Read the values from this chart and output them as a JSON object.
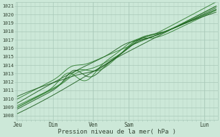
{
  "title": "",
  "xlabel": "Pression niveau de la mer( hPa )",
  "ylabel": "",
  "ylim": [
    1007.5,
    1021.5
  ],
  "yticks": [
    1008,
    1009,
    1010,
    1011,
    1012,
    1013,
    1014,
    1015,
    1016,
    1017,
    1018,
    1019,
    1020,
    1021
  ],
  "xtick_labels": [
    "Jeu",
    "Dim",
    "Ven",
    "Sam",
    "Lun"
  ],
  "xtick_positions": [
    0.0,
    0.18,
    0.38,
    0.56,
    0.94
  ],
  "background_color": "#cce8d8",
  "grid_color": "#a8c8b8",
  "line_color_dark": "#1a5c1a",
  "line_color_med": "#2e7d2e",
  "font_color": "#334433",
  "num_lines": 8
}
